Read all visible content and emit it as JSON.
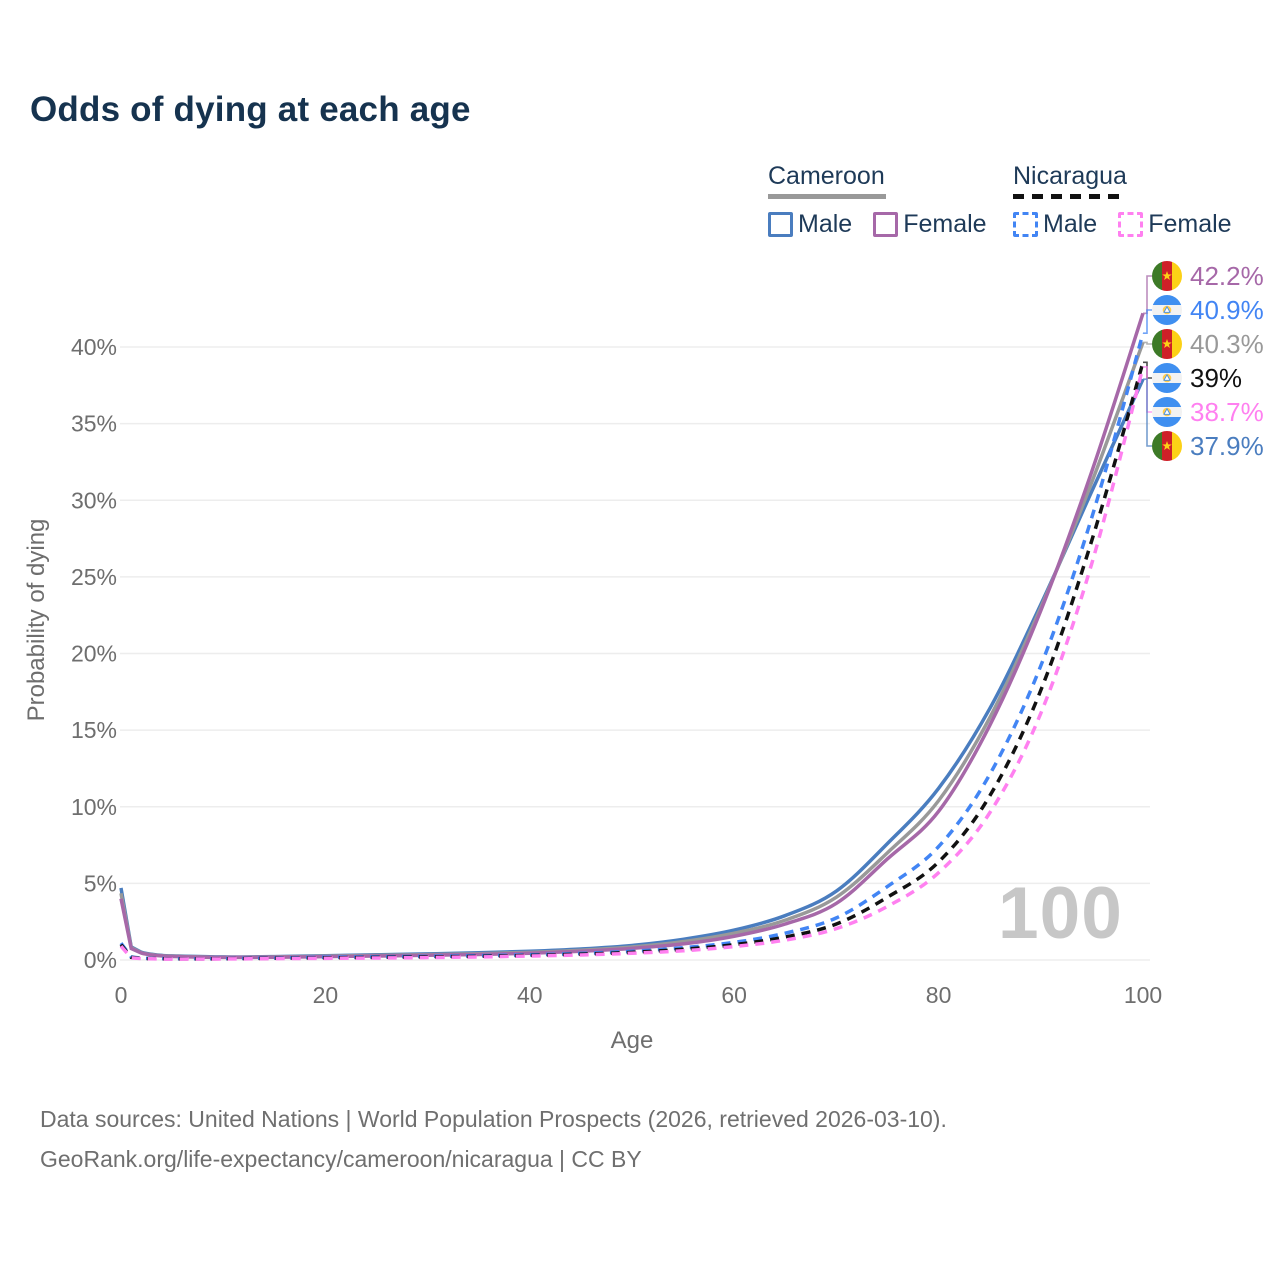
{
  "title": "Odds of dying at each age",
  "watermark": "100",
  "footer": {
    "line1": "Data sources: United Nations | World Population Prospects (2026, retrieved 2026-03-10).",
    "line2": "GeoRank.org/life-expectancy/cameroon/nicaragua | CC BY"
  },
  "colors": {
    "title_navy": "#16334f",
    "cameroon_male": "#4a7dbf",
    "cameroon_female": "#a668a8",
    "cameroon_both": "#999999",
    "nicaragua_male": "#4285f4",
    "nicaragua_female": "#ff80f0",
    "nicaragua_both": "#111111",
    "axis_text": "#6e6e6e",
    "grid": "#ededed",
    "watermark_gray": "#c7c7c7"
  },
  "legend": {
    "groups": [
      {
        "label": "Cameroon",
        "underline": "solid",
        "underline_color": "#999999",
        "items": [
          {
            "label": "Male",
            "color": "#4a7dbf",
            "dashed": false
          },
          {
            "label": "Female",
            "color": "#a668a8",
            "dashed": false
          }
        ]
      },
      {
        "label": "Nicaragua",
        "underline": "dashed",
        "underline_color": "#111111",
        "items": [
          {
            "label": "Male",
            "color": "#4285f4",
            "dashed": true
          },
          {
            "label": "Female",
            "color": "#ff80f0",
            "dashed": true
          }
        ]
      }
    ]
  },
  "chart_data": {
    "type": "line",
    "title": "Odds of dying at each age",
    "xlabel": "Age",
    "ylabel": "Probability of dying",
    "x_ticks": [
      0,
      20,
      40,
      60,
      80,
      100
    ],
    "y_ticks": [
      0,
      5,
      10,
      15,
      20,
      25,
      30,
      35,
      40
    ],
    "y_tick_labels": [
      "0%",
      "5%",
      "10%",
      "15%",
      "20%",
      "25%",
      "30%",
      "35%",
      "40%"
    ],
    "xlim": [
      0,
      100
    ],
    "ylim_percent": [
      0,
      44
    ],
    "grid": "horizontal-only",
    "legend_position": "top-right",
    "x": [
      0,
      1,
      2,
      3,
      4,
      5,
      10,
      15,
      20,
      25,
      30,
      35,
      40,
      45,
      50,
      55,
      60,
      65,
      70,
      75,
      80,
      85,
      90,
      95,
      100
    ],
    "series": [
      {
        "name": "Cameroon Male",
        "color": "#4a7dbf",
        "dashed": false,
        "values": [
          4.7,
          0.85,
          0.5,
          0.38,
          0.3,
          0.27,
          0.2,
          0.22,
          0.28,
          0.34,
          0.4,
          0.47,
          0.57,
          0.72,
          0.95,
          1.35,
          1.95,
          2.9,
          4.5,
          7.6,
          11.2,
          16.4,
          23.2,
          30.6,
          37.9
        ]
      },
      {
        "name": "Cameroon Both",
        "color": "#999999",
        "dashed": false,
        "values": [
          4.35,
          0.8,
          0.47,
          0.35,
          0.28,
          0.25,
          0.18,
          0.2,
          0.25,
          0.3,
          0.35,
          0.41,
          0.5,
          0.64,
          0.85,
          1.2,
          1.75,
          2.6,
          4.1,
          7.0,
          10.4,
          15.8,
          23.0,
          31.2,
          40.3
        ]
      },
      {
        "name": "Cameroon Female",
        "color": "#a668a8",
        "dashed": false,
        "values": [
          4.0,
          0.75,
          0.45,
          0.33,
          0.27,
          0.23,
          0.17,
          0.18,
          0.22,
          0.26,
          0.31,
          0.36,
          0.44,
          0.57,
          0.76,
          1.05,
          1.55,
          2.35,
          3.7,
          6.6,
          9.7,
          15.3,
          22.8,
          31.9,
          42.2
        ]
      },
      {
        "name": "Nicaragua Male",
        "color": "#4285f4",
        "dashed": true,
        "values": [
          1.1,
          0.2,
          0.12,
          0.1,
          0.09,
          0.08,
          0.09,
          0.13,
          0.18,
          0.21,
          0.24,
          0.28,
          0.34,
          0.43,
          0.57,
          0.8,
          1.15,
          1.75,
          2.75,
          4.8,
          7.4,
          12.1,
          19.2,
          28.9,
          40.9
        ]
      },
      {
        "name": "Nicaragua Both",
        "color": "#111111",
        "dashed": true,
        "values": [
          1.0,
          0.17,
          0.1,
          0.09,
          0.08,
          0.07,
          0.08,
          0.11,
          0.14,
          0.17,
          0.2,
          0.24,
          0.3,
          0.38,
          0.5,
          0.7,
          1.0,
          1.5,
          2.35,
          4.1,
          6.4,
          10.7,
          17.6,
          27.4,
          39.0
        ]
      },
      {
        "name": "Nicaragua Female",
        "color": "#ff80f0",
        "dashed": true,
        "values": [
          0.9,
          0.14,
          0.09,
          0.08,
          0.07,
          0.06,
          0.07,
          0.09,
          0.11,
          0.13,
          0.16,
          0.2,
          0.26,
          0.33,
          0.44,
          0.6,
          0.88,
          1.3,
          2.05,
          3.5,
          5.7,
          9.6,
          16.1,
          25.9,
          38.7
        ]
      }
    ],
    "end_labels": [
      {
        "text": "42.2%",
        "value": 42.2,
        "flag": "cameroon",
        "color": "#a668a8",
        "series": "Cameroon Female"
      },
      {
        "text": "40.9%",
        "value": 40.9,
        "flag": "nicaragua",
        "color": "#4285f4",
        "series": "Nicaragua Male"
      },
      {
        "text": "40.3%",
        "value": 40.3,
        "flag": "cameroon",
        "color": "#999999",
        "series": "Cameroon Both"
      },
      {
        "text": "39%",
        "value": 39.0,
        "flag": "nicaragua",
        "color": "#111111",
        "series": "Nicaragua Both"
      },
      {
        "text": "38.7%",
        "value": 38.7,
        "flag": "nicaragua",
        "color": "#ff80f0",
        "series": "Nicaragua Female"
      },
      {
        "text": "37.9%",
        "value": 37.9,
        "flag": "cameroon",
        "color": "#4a7dbf",
        "series": "Cameroon Male"
      }
    ]
  }
}
